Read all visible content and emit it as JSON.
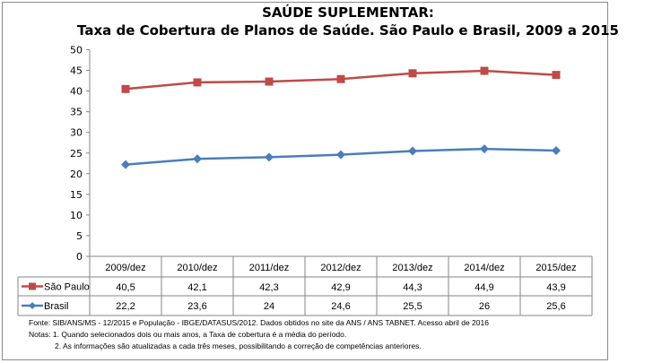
{
  "chart_data": {
    "type": "line",
    "title": "SAÚDE SUPLEMENTAR:",
    "subtitle": "Taxa de Cobertura de Planos de Saúde. São Paulo e Brasil, 2009 a 2015",
    "categories": [
      "2009/dez",
      "2010/dez",
      "2011/dez",
      "2012/dez",
      "2013/dez",
      "2014/dez",
      "2015/dez"
    ],
    "series": [
      {
        "name": "São Paulo",
        "values": [
          40.5,
          42.1,
          42.3,
          42.9,
          44.3,
          44.9,
          43.9
        ],
        "labels": [
          "40,5",
          "42,1",
          "42,3",
          "42,9",
          "44,3",
          "44,9",
          "43,9"
        ],
        "color": "#be4b48",
        "marker": "square"
      },
      {
        "name": "Brasil",
        "values": [
          22.2,
          23.6,
          24,
          24.6,
          25.5,
          26,
          25.6
        ],
        "labels": [
          "22,2",
          "23,6",
          "24",
          "24,6",
          "25,5",
          "26",
          "25,6"
        ],
        "color": "#4a7ebb",
        "marker": "diamond"
      }
    ],
    "ylim": [
      0,
      50
    ],
    "yticks": [
      0,
      5,
      10,
      15,
      20,
      25,
      30,
      35,
      40,
      45,
      50
    ],
    "grid": false,
    "legend": "data-table"
  },
  "notes": {
    "fonte": "Fonte:  SIB/ANS/MS - 12/2015 e População - IBGE/DATASUS/2012. Dados obtidos no site da ANS / ANS TABNET. Acesso abril de 2016",
    "nota1": "Notas: 1. Quando selecionados dois ou mais anos, a Taxa de cobertura é a média do período.",
    "nota2": "2. As informações são atualizadas a cada três meses, possibilitando a correção de competências anteriores."
  }
}
